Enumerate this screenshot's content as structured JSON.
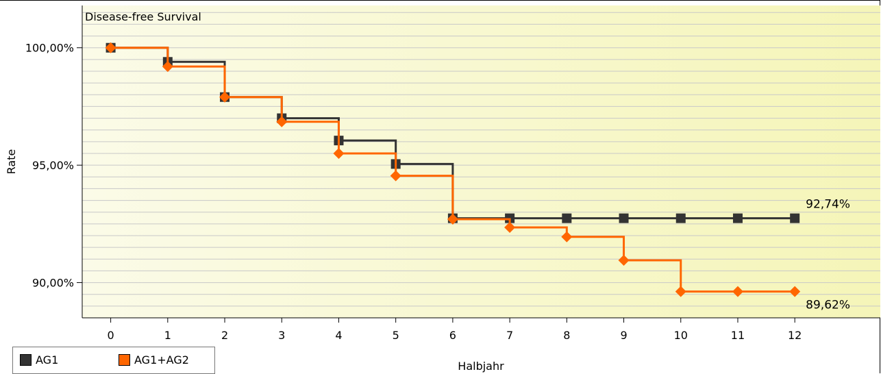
{
  "chart_data": {
    "type": "line",
    "title": "Disease-free Survival",
    "xlabel": "Halbjahr",
    "ylabel": "Rate",
    "x": [
      0,
      1,
      2,
      3,
      4,
      5,
      6,
      7,
      8,
      9,
      10,
      11,
      12
    ],
    "xlim": [
      -0.5,
      13.5
    ],
    "ylim": [
      88.5,
      101.8
    ],
    "yticks": [
      90,
      95,
      100
    ],
    "ytick_labels": [
      "90,00%",
      "95,00%",
      "100,00%"
    ],
    "grid": true,
    "step": true,
    "legend_position": "bottom-left",
    "series": [
      {
        "name": "AG1",
        "color": "#333333",
        "marker": "square",
        "values": [
          100.0,
          99.4,
          97.9,
          97.0,
          96.05,
          95.05,
          92.74,
          92.74,
          92.74,
          92.74,
          92.74,
          92.74,
          92.74
        ],
        "end_label": "92,74%"
      },
      {
        "name": "AG1+AG2",
        "color": "#ff6600",
        "marker": "diamond",
        "values": [
          100.0,
          99.2,
          97.9,
          96.85,
          95.5,
          94.55,
          92.7,
          92.35,
          91.95,
          90.95,
          89.62,
          89.62,
          89.62
        ],
        "end_label": "89,62%"
      }
    ]
  }
}
